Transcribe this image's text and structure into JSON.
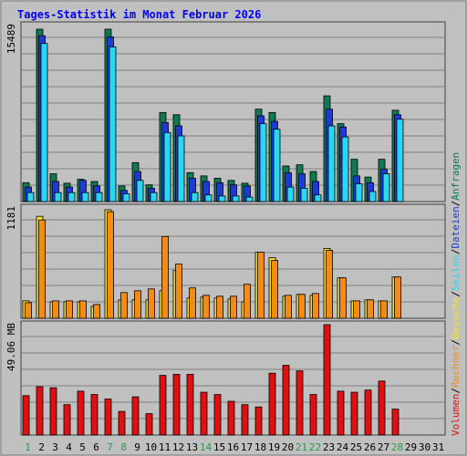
{
  "colors": {
    "background": "#c0c0c0",
    "plot_background": "#c0c0c0",
    "title": "#0000ff",
    "anfragen": "#0e7a50",
    "dateien": "#1c3ad8",
    "seiten": "#2ad6f2",
    "besuche": "#f6e028",
    "rechner": "#f48c14",
    "volumen": "#e01010",
    "weekend_label": "#2a9a4a",
    "weekday_label": "#000000",
    "separator": "#000000"
  },
  "chart_data": {
    "type": "bar",
    "title": "Tages-Statistik im Monat Februar 2026",
    "x": [
      "1",
      "2",
      "3",
      "4",
      "5",
      "6",
      "7",
      "8",
      "9",
      "10",
      "11",
      "12",
      "13",
      "14",
      "15",
      "16",
      "17",
      "18",
      "19",
      "20",
      "21",
      "22",
      "23",
      "24",
      "25",
      "26",
      "27",
      "28",
      "29",
      "30",
      "31"
    ],
    "weekend_days": [
      "1",
      "7",
      "8",
      "14",
      "21",
      "22",
      "28"
    ],
    "separators": [
      "/",
      "/",
      "/",
      "/",
      "/"
    ],
    "panels": [
      {
        "name": "hits",
        "ymax_label": "15489",
        "ylim": [
          0,
          15489
        ],
        "series": [
          {
            "name": "Anfragen",
            "values": [
              1700,
              15489,
              2500,
              1650,
              2000,
              1800,
              15489,
              1400,
              3500,
              1500,
              8000,
              7800,
              2600,
              2300,
              2100,
              1900,
              1650,
              8300,
              8000,
              3200,
              3300,
              2700,
              9500,
              7000,
              3800,
              2200,
              0,
              0,
              0,
              0,
              0
            ]
          },
          {
            "name": "Dateien",
            "values": [
              1300,
              14900,
              1800,
              1300,
              1900,
              1400,
              14800,
              1000,
              2700,
              1200,
              7100,
              6800,
              2100,
              1800,
              1700,
              1500,
              1400,
              7700,
              7200,
              2600,
              2500,
              1800,
              8300,
              6700,
              2300,
              1700,
              0,
              0,
              0,
              0,
              0
            ]
          },
          {
            "name": "Seiten",
            "values": [
              800,
              14200,
              800,
              800,
              800,
              800,
              13900,
              700,
              1900,
              800,
              6200,
              5900,
              800,
              600,
              500,
              500,
              400,
              7000,
              6500,
              1300,
              1200,
              600,
              6800,
              5800,
              1600,
              900,
              0,
              0,
              0,
              0,
              0
            ]
          }
        ],
        "extra": {
          "27": [
            3800,
            2900,
            2500
          ],
          "28": [
            8200,
            7800,
            7400
          ]
        }
      },
      {
        "name": "visits",
        "ymax_label": "1181",
        "ylim": [
          0,
          1181
        ],
        "series": [
          {
            "name": "Besuche",
            "values": [
              190,
              1110,
              180,
              180,
              180,
              130,
              1181,
              200,
              200,
              200,
              300,
              520,
              220,
              230,
              220,
              210,
              180,
              720,
              660,
              240,
              260,
              250,
              760,
              440,
              190,
              200,
              190,
              450,
              0,
              0,
              0
            ]
          },
          {
            "name": "Rechner",
            "values": [
              170,
              1070,
              190,
              190,
              190,
              150,
              1160,
              280,
              300,
              320,
              890,
              590,
              330,
              250,
              240,
              240,
              370,
              720,
              630,
              250,
              260,
              270,
              740,
              440,
              190,
              200,
              190,
              450,
              0,
              0,
              0
            ]
          }
        ]
      },
      {
        "name": "volume",
        "ymax_label": "49.06 MB",
        "ylim": [
          0,
          49.06
        ],
        "series": [
          {
            "name": "Volumen",
            "values": [
              17.5,
              21.5,
              21.0,
              13.5,
              19.5,
              18.0,
              16.0,
              10.5,
              17.0,
              9.5,
              26.5,
              27.0,
              27.0,
              19.0,
              18.0,
              15.0,
              13.5,
              12.5,
              27.5,
              31.0,
              28.5,
              18.0,
              49.06,
              19.5,
              19.0,
              20.0,
              24.0,
              11.5,
              0,
              0,
              0
            ]
          }
        ]
      }
    ],
    "legend": [
      "Anfragen",
      "Dateien",
      "Seiten",
      "Besuche",
      "Rechner",
      "Volumen"
    ]
  }
}
